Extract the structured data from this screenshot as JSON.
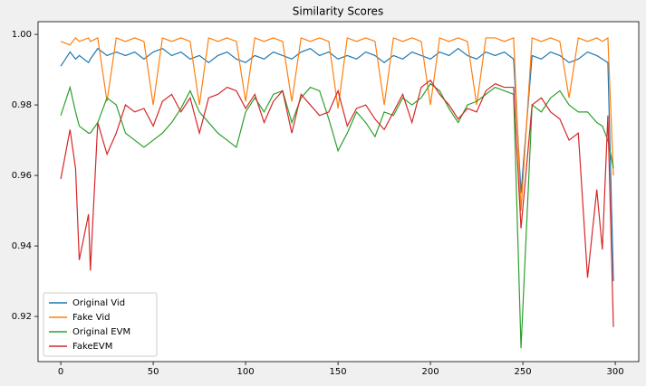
{
  "chart_data": {
    "type": "line",
    "title": "Similarity Scores",
    "x": [
      0,
      5,
      8,
      10,
      15,
      16,
      20,
      25,
      30,
      35,
      40,
      45,
      50,
      55,
      60,
      65,
      70,
      75,
      80,
      85,
      90,
      95,
      100,
      105,
      110,
      115,
      120,
      125,
      130,
      135,
      140,
      145,
      150,
      155,
      160,
      165,
      170,
      175,
      180,
      185,
      190,
      195,
      200,
      205,
      210,
      215,
      220,
      225,
      230,
      235,
      240,
      245,
      249,
      255,
      260,
      265,
      270,
      275,
      280,
      285,
      290,
      293,
      296,
      299
    ],
    "series": [
      {
        "name": "Original Vid",
        "color": "#1f77b4",
        "values": [
          0.991,
          0.995,
          0.993,
          0.994,
          0.992,
          0.993,
          0.996,
          0.994,
          0.995,
          0.994,
          0.995,
          0.993,
          0.995,
          0.996,
          0.994,
          0.995,
          0.993,
          0.994,
          0.992,
          0.994,
          0.995,
          0.993,
          0.992,
          0.994,
          0.993,
          0.995,
          0.994,
          0.993,
          0.995,
          0.996,
          0.994,
          0.995,
          0.993,
          0.994,
          0.993,
          0.995,
          0.994,
          0.992,
          0.994,
          0.993,
          0.995,
          0.994,
          0.993,
          0.995,
          0.994,
          0.996,
          0.994,
          0.993,
          0.995,
          0.994,
          0.995,
          0.993,
          0.955,
          0.994,
          0.993,
          0.995,
          0.994,
          0.992,
          0.993,
          0.995,
          0.994,
          0.993,
          0.992,
          0.93
        ]
      },
      {
        "name": "Fake Vid",
        "color": "#ff7f0e",
        "values": [
          0.998,
          0.997,
          0.999,
          0.998,
          0.999,
          0.998,
          0.999,
          0.981,
          0.999,
          0.998,
          0.999,
          0.998,
          0.98,
          0.999,
          0.998,
          0.999,
          0.998,
          0.98,
          0.999,
          0.998,
          0.999,
          0.998,
          0.981,
          0.999,
          0.998,
          0.999,
          0.998,
          0.981,
          0.999,
          0.998,
          0.999,
          0.998,
          0.979,
          0.999,
          0.998,
          0.999,
          0.998,
          0.98,
          0.999,
          0.998,
          0.999,
          0.998,
          0.98,
          0.999,
          0.998,
          0.999,
          0.998,
          0.98,
          0.999,
          0.999,
          0.998,
          0.999,
          0.95,
          0.999,
          0.998,
          0.999,
          0.998,
          0.982,
          0.999,
          0.998,
          0.999,
          0.998,
          0.999,
          0.96
        ]
      },
      {
        "name": "Original EVM",
        "color": "#2ca02c",
        "values": [
          0.977,
          0.985,
          0.978,
          0.974,
          0.972,
          0.972,
          0.975,
          0.982,
          0.98,
          0.972,
          0.97,
          0.968,
          0.97,
          0.972,
          0.975,
          0.979,
          0.984,
          0.978,
          0.975,
          0.972,
          0.97,
          0.968,
          0.978,
          0.982,
          0.978,
          0.983,
          0.984,
          0.975,
          0.982,
          0.985,
          0.984,
          0.976,
          0.967,
          0.972,
          0.978,
          0.975,
          0.971,
          0.978,
          0.977,
          0.982,
          0.98,
          0.982,
          0.986,
          0.984,
          0.979,
          0.975,
          0.98,
          0.981,
          0.983,
          0.985,
          0.984,
          0.983,
          0.911,
          0.98,
          0.978,
          0.982,
          0.984,
          0.98,
          0.978,
          0.978,
          0.975,
          0.974,
          0.97,
          0.962
        ]
      },
      {
        "name": "FakeEVM",
        "color": "#d62728",
        "values": [
          0.959,
          0.973,
          0.962,
          0.936,
          0.949,
          0.933,
          0.975,
          0.966,
          0.972,
          0.98,
          0.978,
          0.979,
          0.974,
          0.981,
          0.983,
          0.978,
          0.982,
          0.972,
          0.982,
          0.983,
          0.985,
          0.984,
          0.979,
          0.983,
          0.975,
          0.981,
          0.984,
          0.972,
          0.983,
          0.98,
          0.977,
          0.978,
          0.984,
          0.974,
          0.979,
          0.98,
          0.976,
          0.973,
          0.978,
          0.983,
          0.975,
          0.985,
          0.987,
          0.983,
          0.98,
          0.976,
          0.979,
          0.978,
          0.984,
          0.986,
          0.985,
          0.985,
          0.945,
          0.98,
          0.982,
          0.978,
          0.976,
          0.97,
          0.972,
          0.931,
          0.956,
          0.939,
          0.977,
          0.917
        ]
      }
    ],
    "xlim": [
      -12.3,
      312.7
    ],
    "xticks": [
      0,
      50,
      100,
      150,
      200,
      250,
      300
    ],
    "ylim": [
      0.9072,
      1.0036
    ],
    "yticks": [
      0.92,
      0.94,
      0.96,
      0.98,
      {
        "value": 1,
        "label": "1.00"
      }
    ],
    "legend": "lower left"
  }
}
